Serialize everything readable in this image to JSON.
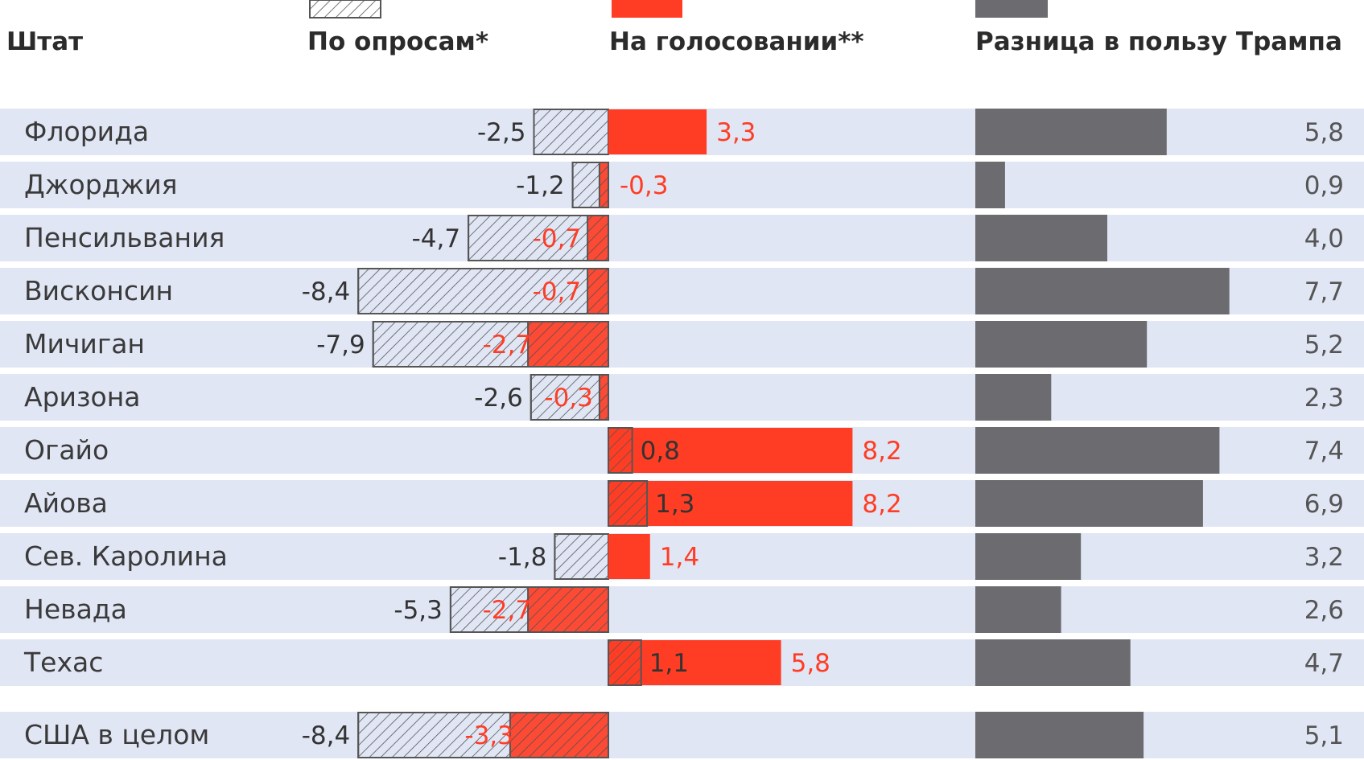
{
  "chart_data": {
    "type": "bar",
    "headers": {
      "state": "Штат",
      "polls": "По опросам*",
      "vote": "На голосовании**",
      "diff": "Разница в пользу Трампа"
    },
    "colors": {
      "row_bg": "#e1e6f5",
      "polls_hatch_stroke": "#555555",
      "polls_fill": "#e1e6f5",
      "vote": "#ff3d24",
      "diff": "#6b6b70",
      "state_text": "#3a3a3a",
      "polls_label": "#333333",
      "vote_label": "#ff3d24",
      "diff_label": "#555555"
    },
    "series": [
      {
        "key": "polls",
        "values": [
          -2.5,
          -1.2,
          -4.7,
          -8.4,
          -7.9,
          -2.6,
          0.8,
          1.3,
          -1.8,
          -5.3,
          1.1,
          -8.4
        ],
        "labels": [
          "-2,5",
          "-1,2",
          "-4,7",
          "-8,4",
          "-7,9",
          "-2,6",
          "0,8",
          "1,3",
          "-1,8",
          "-5,3",
          "1,1",
          "-8,4"
        ]
      },
      {
        "key": "vote",
        "values": [
          3.3,
          -0.3,
          -0.7,
          -0.7,
          -2.7,
          -0.3,
          8.2,
          8.2,
          1.4,
          -2.7,
          5.8,
          -3.3
        ],
        "labels": [
          "3,3",
          "-0,3",
          "-0,7",
          "-0,7",
          "-2,7",
          "-0,3",
          "8,2",
          "8,2",
          "1,4",
          "-2,7",
          "5,8",
          "-3,3"
        ]
      },
      {
        "key": "diff",
        "values": [
          5.8,
          0.9,
          4.0,
          7.7,
          5.2,
          2.3,
          7.4,
          6.9,
          3.2,
          2.6,
          4.7,
          5.1
        ],
        "labels": [
          "5,8",
          "0,9",
          "4,0",
          "7,7",
          "5,2",
          "2,3",
          "7,4",
          "6,9",
          "3,2",
          "2,6",
          "4,7",
          "5,1"
        ]
      }
    ],
    "categories": [
      "Флорида",
      "Джорджия",
      "Пенсильвания",
      "Висконсин",
      "Мичиган",
      "Аризона",
      "Огайо",
      "Айова",
      "Сев. Каролина",
      "Невада",
      "Техас",
      "США в целом"
    ],
    "grid": false
  }
}
